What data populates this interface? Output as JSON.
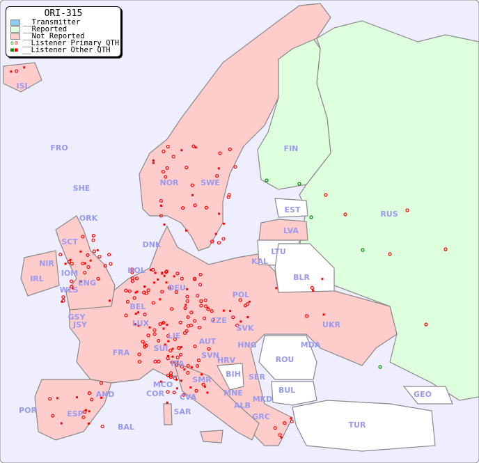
{
  "legend": {
    "title": "ORI-315",
    "items": [
      {
        "label": "__Transmitter",
        "color": "#88ccf8"
      },
      {
        "label": "__Reported",
        "color": "#ddffdd"
      },
      {
        "label": "__Not Reported",
        "color": "#ffcccc"
      },
      {
        "label": "__Listener Primary QTH",
        "color": "#ff0000"
      },
      {
        "label": "__Listener Other QTH",
        "color": "#ff0000"
      }
    ]
  },
  "colors": {
    "sea": "#eeeeff",
    "not_reported": "#ffcccc",
    "reported": "#ddffdd",
    "no_data": "#ffffff",
    "marker": "#ff0000",
    "reported_marker": "#008800",
    "label": "#9999ee"
  },
  "countries": [
    "ISL",
    "FRO",
    "SHE",
    "ORK",
    "NOR",
    "SWE",
    "FIN",
    "RUS",
    "EST",
    "LVA",
    "LTU",
    "KAL",
    "BLR",
    "DNK",
    "HOL",
    "DEU",
    "POL",
    "SCT",
    "NIR",
    "IRL",
    "IOM",
    "WLS",
    "ENG",
    "GSY",
    "JSY",
    "BEL",
    "LUX",
    "FRA",
    "SUI",
    "LIE",
    "AUT",
    "CZE",
    "SVK",
    "HNG",
    "UKR",
    "MDA",
    "ROU",
    "SVN",
    "HRV",
    "BIH",
    "SER",
    "MNE",
    "ALB",
    "MKD",
    "BUL",
    "GRC",
    "TUR",
    "GEO",
    "ITA",
    "MCO",
    "COR",
    "SMR",
    "CVA",
    "SAR",
    "AND",
    "ESP",
    "POR",
    "BAL"
  ]
}
